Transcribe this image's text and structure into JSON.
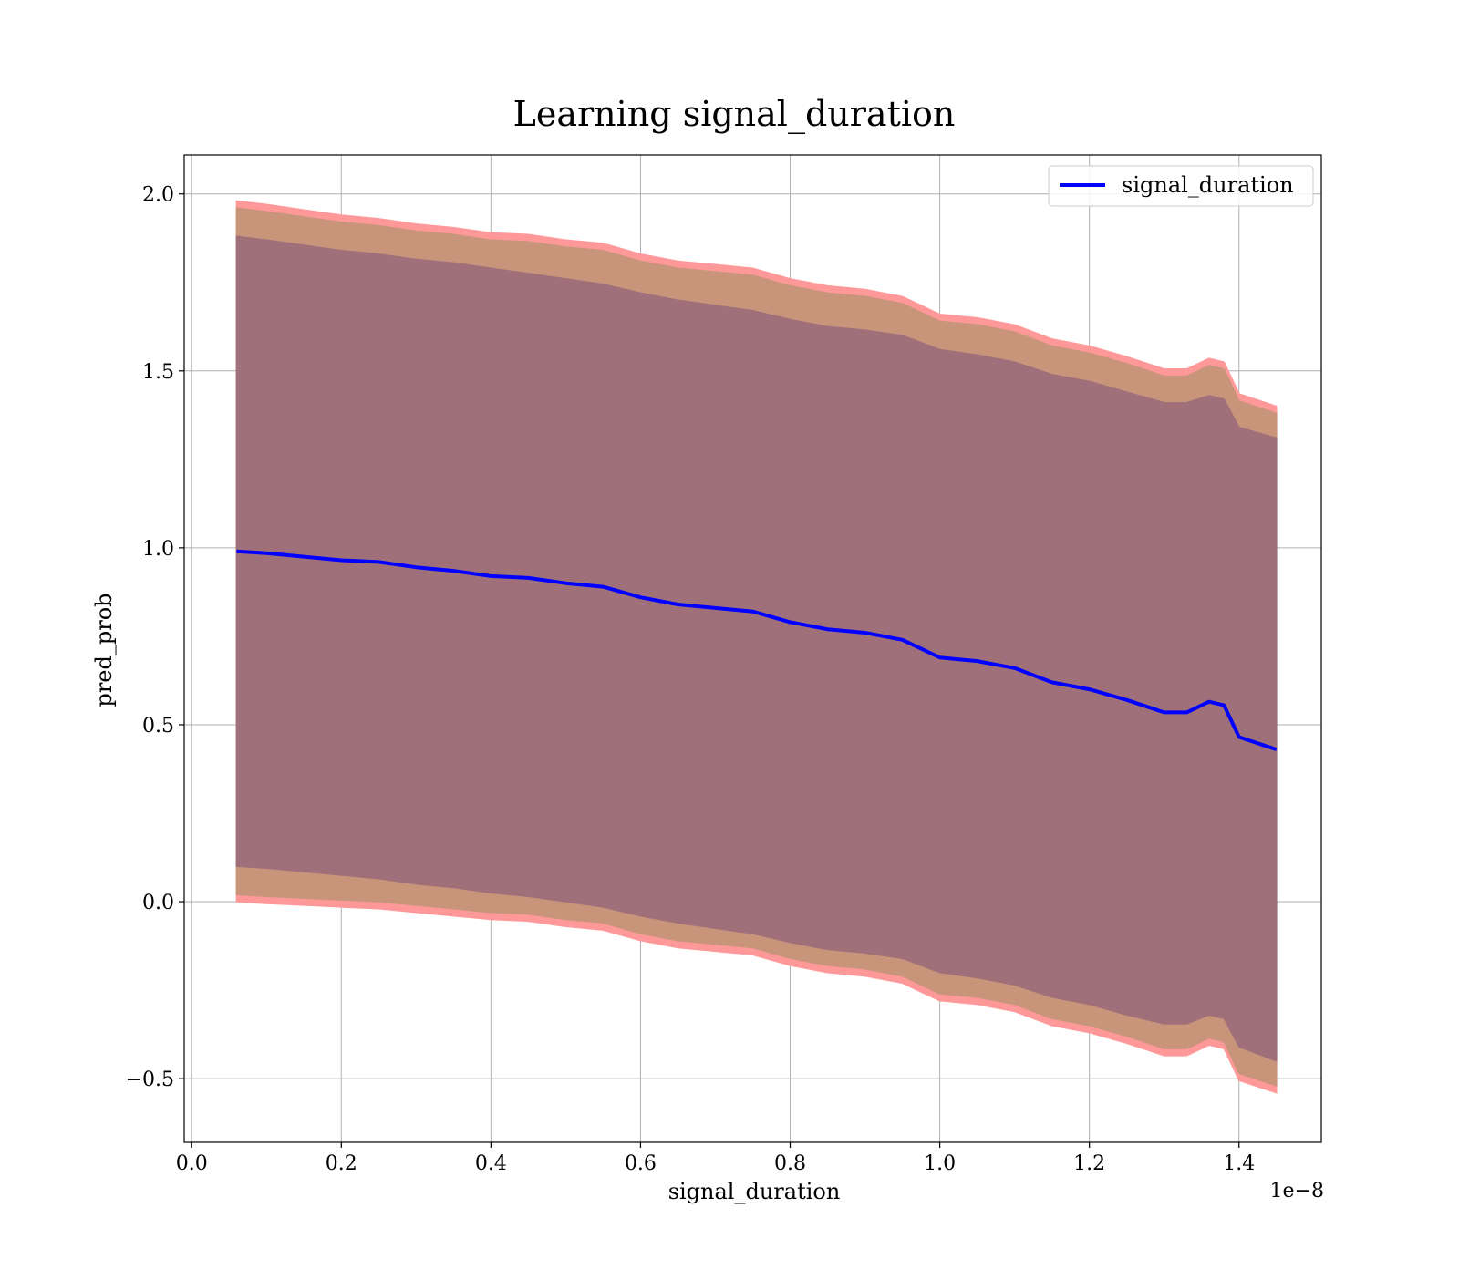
{
  "chart_data": {
    "type": "line",
    "title": "Learning signal_duration",
    "xlabel": "signal_duration",
    "ylabel": "pred_prob",
    "x_offset_label": "1e−8",
    "xlim": [
      -0.01,
      1.51
    ],
    "ylim": [
      -0.68,
      2.11
    ],
    "x_ticks": [
      0.0,
      0.2,
      0.4,
      0.6,
      0.8,
      1.0,
      1.2,
      1.4
    ],
    "x_tick_labels": [
      "0.0",
      "0.2",
      "0.4",
      "0.6",
      "0.8",
      "1.0",
      "1.2",
      "1.4"
    ],
    "y_ticks": [
      -0.5,
      0.0,
      0.5,
      1.0,
      1.5,
      2.0
    ],
    "y_tick_labels": [
      "−0.5",
      "0.0",
      "0.5",
      "1.0",
      "1.5",
      "2.0"
    ],
    "grid": true,
    "legend_position": "top-right",
    "series": [
      {
        "name": "signal_duration",
        "color": "#0000ff",
        "x": [
          0.06,
          0.1,
          0.15,
          0.2,
          0.25,
          0.3,
          0.35,
          0.4,
          0.45,
          0.5,
          0.55,
          0.6,
          0.65,
          0.7,
          0.75,
          0.8,
          0.85,
          0.9,
          0.95,
          1.0,
          1.05,
          1.1,
          1.15,
          1.2,
          1.25,
          1.3,
          1.33,
          1.36,
          1.38,
          1.4,
          1.45
        ],
        "y": [
          0.99,
          0.985,
          0.975,
          0.965,
          0.96,
          0.945,
          0.935,
          0.92,
          0.915,
          0.9,
          0.89,
          0.86,
          0.84,
          0.83,
          0.82,
          0.79,
          0.77,
          0.76,
          0.74,
          0.69,
          0.68,
          0.66,
          0.62,
          0.6,
          0.57,
          0.535,
          0.535,
          0.565,
          0.555,
          0.465,
          0.43
        ]
      }
    ],
    "bands": [
      {
        "label": "outer",
        "fill": "#ff9999",
        "upper": [
          1.98,
          1.97,
          1.955,
          1.94,
          1.93,
          1.915,
          1.905,
          1.89,
          1.885,
          1.87,
          1.86,
          1.83,
          1.81,
          1.8,
          1.79,
          1.76,
          1.74,
          1.73,
          1.71,
          1.66,
          1.65,
          1.63,
          1.59,
          1.57,
          1.54,
          1.505,
          1.505,
          1.535,
          1.525,
          1.435,
          1.4
        ],
        "lower": [
          0.0,
          -0.005,
          -0.01,
          -0.015,
          -0.02,
          -0.03,
          -0.04,
          -0.05,
          -0.055,
          -0.07,
          -0.08,
          -0.11,
          -0.13,
          -0.14,
          -0.15,
          -0.18,
          -0.2,
          -0.21,
          -0.23,
          -0.28,
          -0.29,
          -0.31,
          -0.35,
          -0.37,
          -0.4,
          -0.435,
          -0.435,
          -0.405,
          -0.415,
          -0.505,
          -0.54
        ]
      },
      {
        "label": "middle",
        "fill": "#c8957a",
        "upper": [
          1.96,
          1.95,
          1.935,
          1.92,
          1.91,
          1.895,
          1.885,
          1.87,
          1.865,
          1.85,
          1.84,
          1.81,
          1.79,
          1.78,
          1.77,
          1.74,
          1.72,
          1.71,
          1.69,
          1.64,
          1.63,
          1.61,
          1.57,
          1.55,
          1.52,
          1.485,
          1.485,
          1.515,
          1.505,
          1.415,
          1.38
        ],
        "lower": [
          0.02,
          0.015,
          0.01,
          0.005,
          0.0,
          -0.01,
          -0.02,
          -0.03,
          -0.035,
          -0.05,
          -0.06,
          -0.09,
          -0.11,
          -0.12,
          -0.13,
          -0.16,
          -0.18,
          -0.19,
          -0.21,
          -0.26,
          -0.27,
          -0.29,
          -0.33,
          -0.35,
          -0.38,
          -0.415,
          -0.415,
          -0.385,
          -0.395,
          -0.485,
          -0.52
        ]
      },
      {
        "label": "inner",
        "fill": "#a0707a",
        "upper": [
          1.88,
          1.87,
          1.855,
          1.84,
          1.83,
          1.815,
          1.805,
          1.79,
          1.775,
          1.76,
          1.745,
          1.72,
          1.7,
          1.685,
          1.67,
          1.645,
          1.625,
          1.615,
          1.6,
          1.56,
          1.545,
          1.525,
          1.49,
          1.47,
          1.44,
          1.41,
          1.41,
          1.43,
          1.42,
          1.34,
          1.31
        ],
        "lower": [
          0.1,
          0.095,
          0.085,
          0.075,
          0.065,
          0.05,
          0.04,
          0.025,
          0.015,
          0.0,
          -0.015,
          -0.04,
          -0.06,
          -0.075,
          -0.09,
          -0.115,
          -0.135,
          -0.145,
          -0.16,
          -0.2,
          -0.215,
          -0.235,
          -0.27,
          -0.29,
          -0.32,
          -0.345,
          -0.345,
          -0.32,
          -0.33,
          -0.41,
          -0.45
        ]
      }
    ]
  }
}
